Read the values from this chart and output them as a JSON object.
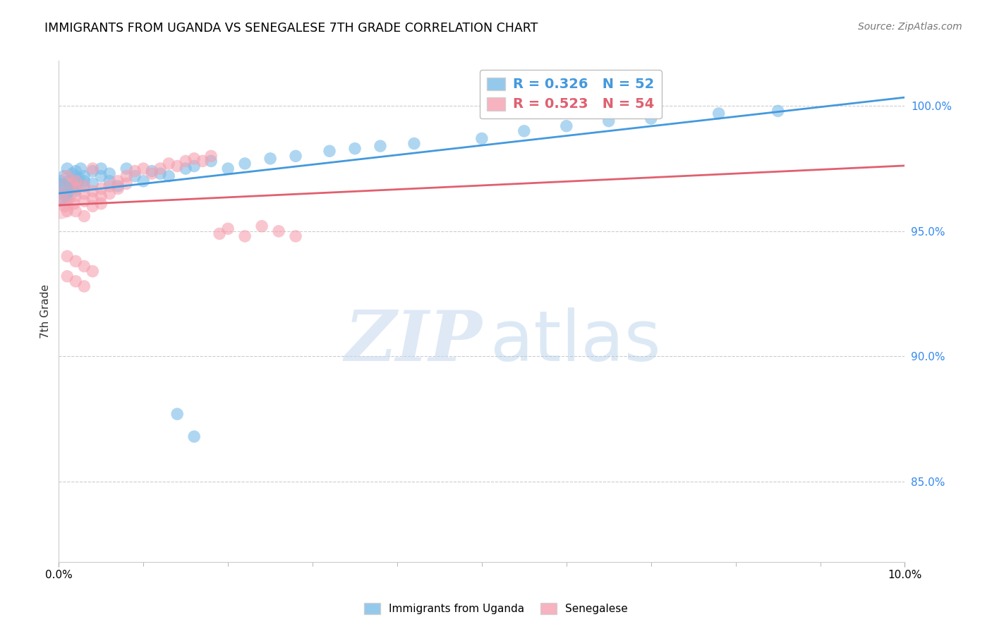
{
  "title": "IMMIGRANTS FROM UGANDA VS SENEGALESE 7TH GRADE CORRELATION CHART",
  "source": "Source: ZipAtlas.com",
  "ylabel": "7th Grade",
  "ylabel_right_ticks": [
    "100.0%",
    "95.0%",
    "90.0%",
    "85.0%"
  ],
  "ylabel_right_vals": [
    1.0,
    0.95,
    0.9,
    0.85
  ],
  "xmin": 0.0,
  "xmax": 0.1,
  "ymin": 0.818,
  "ymax": 1.018,
  "legend_blue_R": "0.326",
  "legend_blue_N": "52",
  "legend_pink_R": "0.523",
  "legend_pink_N": "54",
  "blue_color": "#7bbce8",
  "pink_color": "#f5a0b0",
  "blue_line_color": "#4499dd",
  "pink_line_color": "#e06070",
  "watermark_zip_color": "#c5d8ee",
  "watermark_atlas_color": "#a8c8e8",
  "uganda_x": [
    0.0002,
    0.0004,
    0.0006,
    0.0008,
    0.001,
    0.001,
    0.0012,
    0.0014,
    0.0016,
    0.0018,
    0.002,
    0.002,
    0.002,
    0.0022,
    0.0024,
    0.0026,
    0.003,
    0.003,
    0.003,
    0.004,
    0.004,
    0.005,
    0.005,
    0.006,
    0.006,
    0.007,
    0.008,
    0.009,
    0.01,
    0.011,
    0.012,
    0.013,
    0.015,
    0.016,
    0.018,
    0.02,
    0.022,
    0.025,
    0.028,
    0.032,
    0.035,
    0.038,
    0.042,
    0.05,
    0.055,
    0.06,
    0.065,
    0.07,
    0.078,
    0.085,
    0.014,
    0.016
  ],
  "uganda_y": [
    0.97,
    0.968,
    0.972,
    0.965,
    0.975,
    0.963,
    0.97,
    0.968,
    0.973,
    0.967,
    0.972,
    0.966,
    0.974,
    0.969,
    0.971,
    0.975,
    0.968,
    0.972,
    0.97,
    0.974,
    0.969,
    0.972,
    0.975,
    0.97,
    0.973,
    0.968,
    0.975,
    0.972,
    0.97,
    0.974,
    0.973,
    0.972,
    0.975,
    0.976,
    0.978,
    0.975,
    0.977,
    0.979,
    0.98,
    0.982,
    0.983,
    0.984,
    0.985,
    0.987,
    0.99,
    0.992,
    0.994,
    0.995,
    0.997,
    0.998,
    0.877,
    0.868
  ],
  "senegal_x": [
    0.0001,
    0.0003,
    0.0005,
    0.0007,
    0.001,
    0.001,
    0.001,
    0.0012,
    0.0015,
    0.0018,
    0.002,
    0.002,
    0.002,
    0.002,
    0.003,
    0.003,
    0.003,
    0.003,
    0.004,
    0.004,
    0.004,
    0.005,
    0.005,
    0.005,
    0.006,
    0.006,
    0.007,
    0.007,
    0.008,
    0.008,
    0.009,
    0.01,
    0.011,
    0.012,
    0.013,
    0.014,
    0.015,
    0.016,
    0.017,
    0.018,
    0.019,
    0.02,
    0.022,
    0.024,
    0.026,
    0.028,
    0.001,
    0.002,
    0.003,
    0.004,
    0.001,
    0.002,
    0.003,
    0.004
  ],
  "senegal_y": [
    0.965,
    0.962,
    0.968,
    0.96,
    0.972,
    0.958,
    0.966,
    0.963,
    0.969,
    0.961,
    0.967,
    0.964,
    0.97,
    0.958,
    0.965,
    0.962,
    0.968,
    0.956,
    0.966,
    0.963,
    0.96,
    0.967,
    0.964,
    0.961,
    0.968,
    0.965,
    0.97,
    0.967,
    0.972,
    0.969,
    0.974,
    0.975,
    0.973,
    0.975,
    0.977,
    0.976,
    0.978,
    0.979,
    0.978,
    0.98,
    0.949,
    0.951,
    0.948,
    0.952,
    0.95,
    0.948,
    0.94,
    0.938,
    0.936,
    0.934,
    0.932,
    0.93,
    0.928,
    0.975
  ]
}
